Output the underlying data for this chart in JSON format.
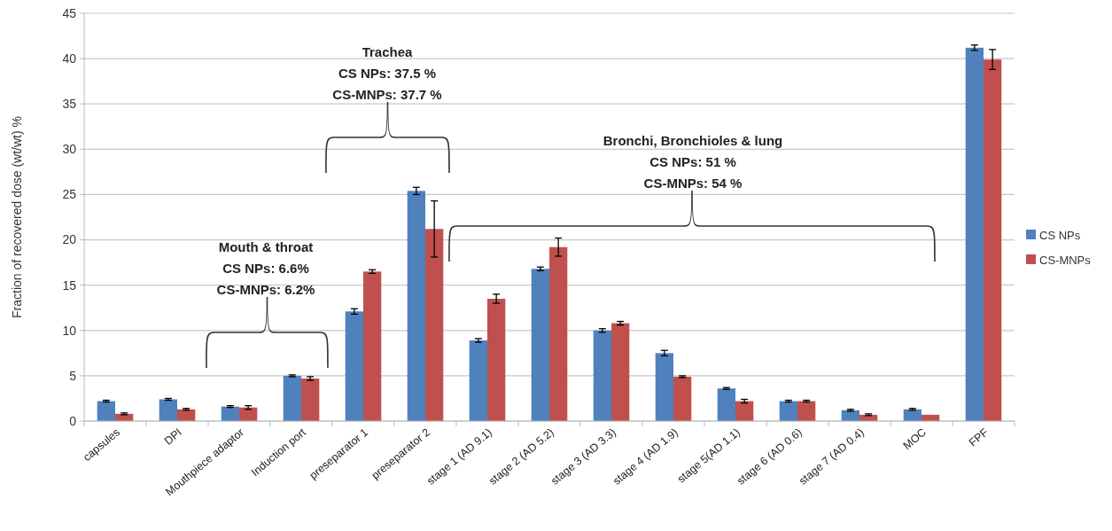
{
  "chart_data": {
    "type": "bar",
    "ylabel": "Fraction of recovered dose (wt/wt) %",
    "categories": [
      "capsules",
      "DPI",
      "Mouthpiece adaptor",
      "Induction port",
      "preseparator 1",
      "preseparator 2",
      "stage 1 (AD 9.1)",
      "stage 2 (AD 5.2)",
      "stage 3 (AD 3.3)",
      "stage 4 (AD 1.9)",
      "stage 5(AD 1.1)",
      "stage 6 (AD 0.6)",
      "stage 7 (AD 0.4)",
      "MOC",
      "FPF"
    ],
    "series": [
      {
        "name": "CS NPs",
        "color": "#4f81bd",
        "values": [
          2.2,
          2.4,
          1.6,
          5.0,
          12.1,
          25.4,
          8.9,
          16.8,
          10.0,
          7.5,
          3.6,
          2.2,
          1.2,
          1.3,
          41.2
        ],
        "errors": [
          0.1,
          0.1,
          0.1,
          0.1,
          0.3,
          0.4,
          0.2,
          0.2,
          0.2,
          0.3,
          0.1,
          0.1,
          0.1,
          0.1,
          0.3
        ]
      },
      {
        "name": "CS-MNPs",
        "color": "#c0504d",
        "values": [
          0.8,
          1.3,
          1.5,
          4.7,
          16.5,
          21.2,
          13.5,
          19.2,
          10.8,
          4.9,
          2.2,
          2.2,
          0.7,
          0.7,
          39.9
        ],
        "errors": [
          0.1,
          0.1,
          0.2,
          0.2,
          0.2,
          3.1,
          0.5,
          1.0,
          0.2,
          0.1,
          0.2,
          0.1,
          0.1,
          null,
          1.1
        ]
      }
    ],
    "ylim": [
      0,
      45
    ],
    "yticks": [
      0,
      5,
      10,
      15,
      20,
      25,
      30,
      35,
      40,
      45
    ],
    "grid": "y",
    "legend": "right",
    "annotations": [
      "Mouth & throat\nCS NPs: 6.6%\nCS-MNPs: 6.2%",
      "Trachea\nCS NPs: 37.5 %\nCS-MNPs:  37.7 %",
      "Bronchi, Bronchioles & lung\nCS NPs: 51 %\nCS-MNPs: 54 %"
    ]
  }
}
